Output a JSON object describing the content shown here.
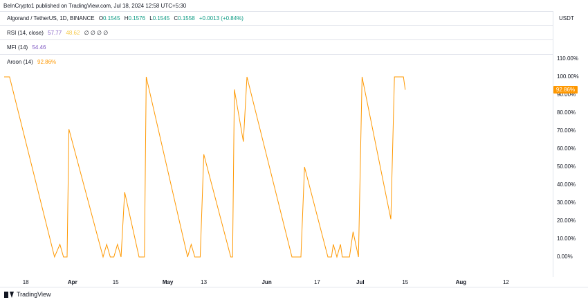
{
  "header": {
    "text": "BeInCrypto1 published on TradingView.com, Jul 18, 2024 12:58 UTC+5:30"
  },
  "legend": {
    "symbol": "Algorand / TetherUS, 1D, BINANCE",
    "o_label": "O",
    "o": "0.1545",
    "h_label": "H",
    "h": "0.1576",
    "l_label": "L",
    "l": "0.1545",
    "c_label": "C",
    "c": "0.1558",
    "change": "+0.0013 (+0.84%)"
  },
  "rsi": {
    "label": "RSI (14, close)",
    "v1": "57.77",
    "v2": "48.62",
    "na": "∅ ∅ ∅ ∅"
  },
  "mfi": {
    "label": "MFI (14)",
    "value": "54.46"
  },
  "aroon": {
    "label": "Aroon (14)",
    "value": "92.86%"
  },
  "currency": "USDT",
  "brand": "TradingView",
  "colors": {
    "line": "#ff9800",
    "up": "#089981",
    "rsi": "#7e57c2",
    "rsi_ma": "#f7c948"
  },
  "chart_data": {
    "type": "line",
    "series": [
      {
        "name": "Aroon (14)",
        "points": [
          [
            0,
            100
          ],
          [
            3,
            100
          ],
          [
            28,
            0
          ],
          [
            31,
            7
          ],
          [
            33,
            0
          ],
          [
            35,
            0
          ],
          [
            36,
            71
          ],
          [
            55,
            0
          ],
          [
            57,
            7
          ],
          [
            59,
            0
          ],
          [
            61,
            0
          ],
          [
            63,
            7
          ],
          [
            65,
            0
          ],
          [
            67,
            36
          ],
          [
            75,
            0
          ],
          [
            78,
            0
          ],
          [
            79,
            100
          ],
          [
            102,
            0
          ],
          [
            104,
            7
          ],
          [
            106,
            0
          ],
          [
            109,
            0
          ],
          [
            111,
            57
          ],
          [
            126,
            0
          ],
          [
            127,
            0
          ],
          [
            128,
            93
          ],
          [
            133,
            64
          ],
          [
            135,
            100
          ],
          [
            160,
            0
          ],
          [
            162,
            0
          ],
          [
            165,
            0
          ],
          [
            167,
            50
          ],
          [
            180,
            0
          ],
          [
            182,
            0
          ],
          [
            183,
            7
          ],
          [
            185,
            0
          ],
          [
            187,
            7
          ],
          [
            188,
            0
          ],
          [
            190,
            0
          ],
          [
            192,
            0
          ],
          [
            194,
            14
          ],
          [
            197,
            0
          ],
          [
            199,
            100
          ],
          [
            215,
            21
          ],
          [
            217,
            100
          ],
          [
            222,
            100
          ],
          [
            223,
            92.86
          ]
        ]
      }
    ],
    "x_ticks": [
      {
        "label": "18",
        "x": 12
      },
      {
        "label": "Apr",
        "x": 38,
        "bold": true
      },
      {
        "label": "15",
        "x": 62
      },
      {
        "label": "May",
        "x": 91,
        "bold": true
      },
      {
        "label": "13",
        "x": 111
      },
      {
        "label": "Jun",
        "x": 146,
        "bold": true
      },
      {
        "label": "17",
        "x": 174
      },
      {
        "label": "Jul",
        "x": 198,
        "bold": true
      },
      {
        "label": "15",
        "x": 223
      },
      {
        "label": "Aug",
        "x": 254,
        "bold": true
      },
      {
        "label": "12",
        "x": 279
      }
    ],
    "y_ticks": [
      "110.00%",
      "100.00%",
      "90.00%",
      "80.00%",
      "70.00%",
      "60.00%",
      "50.00%",
      "40.00%",
      "30.00%",
      "20.00%",
      "10.00%",
      "0.00%"
    ],
    "y_values": [
      110,
      100,
      90,
      80,
      70,
      60,
      50,
      40,
      30,
      20,
      10,
      0
    ],
    "ylim": [
      0,
      110
    ],
    "last_value_label": "92.86%",
    "grid": false
  }
}
